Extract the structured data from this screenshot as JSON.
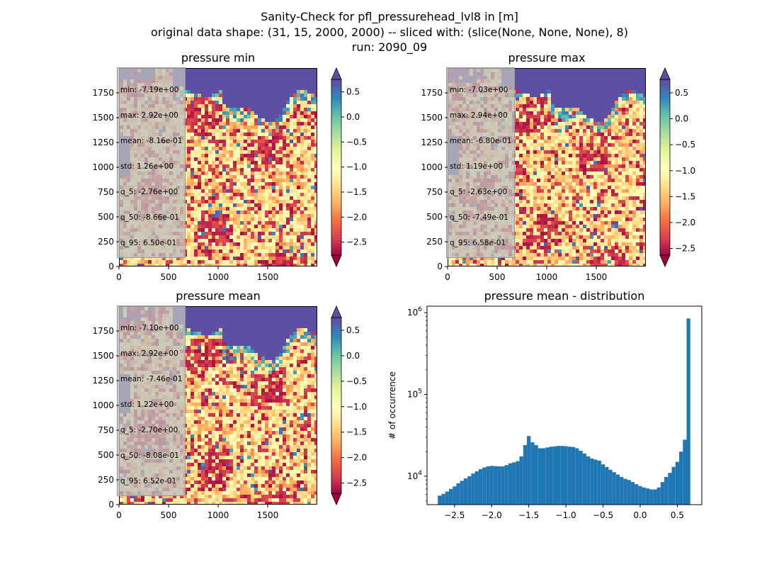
{
  "figure": {
    "suptitle_lines": [
      "Sanity-Check for pfl_pressurehead_lvl8 in [m]",
      "original data shape: (31, 15, 2000, 2000) -- sliced with: (slice(None, None, None), 8)",
      "run: 2090_09"
    ]
  },
  "panels": {
    "min": {
      "title": "pressure min",
      "stats": [
        "min: -7.19e+00",
        "max: 2.92e+00",
        "mean: -8.16e-01",
        "std: 1.26e+00",
        "q_5: -2.76e+00",
        "q_50: -8.66e-01",
        "q_95: 6.50e-01"
      ]
    },
    "max": {
      "title": "pressure max",
      "stats": [
        "min: -7.03e+00",
        "max: 2.94e+00",
        "mean: -6.80e-01",
        "std: 1.19e+00",
        "q_5: -2.63e+00",
        "q_50: -7.49e-01",
        "q_95: 6.58e-01"
      ]
    },
    "mean": {
      "title": "pressure mean",
      "stats": [
        "min: -7.10e+00",
        "max: 2.92e+00",
        "mean: -7.46e-01",
        "std: 1.22e+00",
        "q_5: -2.70e+00",
        "q_50: -8.08e-01",
        "q_95: 6.52e-01"
      ]
    },
    "hist": {
      "title": "pressure mean - distribution",
      "ylabel": "# of occurrence"
    }
  },
  "chart_data": [
    {
      "type": "heatmap",
      "title": "pressure min",
      "x_ticks": [
        "0",
        "500",
        "1000",
        "1500"
      ],
      "y_ticks": [
        "0",
        "250",
        "500",
        "750",
        "1000",
        "1250",
        "1500",
        "1750"
      ],
      "xlim": [
        0,
        2000
      ],
      "ylim": [
        0,
        2000
      ],
      "colorbar": {
        "range": [
          -2.76,
          0.75
        ],
        "ticks": [
          "0.5",
          "0.0",
          "−0.5",
          "−1.0",
          "−1.5",
          "−2.0",
          "−2.5"
        ],
        "tick_values": [
          0.5,
          0.0,
          -0.5,
          -1.0,
          -1.5,
          -2.0,
          -2.5
        ],
        "extend": "both",
        "colormap": "Spectral"
      }
    },
    {
      "type": "heatmap",
      "title": "pressure max",
      "x_ticks": [
        "0",
        "500",
        "1000",
        "1500"
      ],
      "y_ticks": [
        "0",
        "250",
        "500",
        "750",
        "1000",
        "1250",
        "1500",
        "1750"
      ],
      "xlim": [
        0,
        2000
      ],
      "ylim": [
        0,
        2000
      ],
      "colorbar": {
        "range": [
          -2.63,
          0.76
        ],
        "ticks": [
          "0.5",
          "0.0",
          "−0.5",
          "−1.0",
          "−1.5",
          "−2.0",
          "−2.5"
        ],
        "tick_values": [
          0.5,
          0.0,
          -0.5,
          -1.0,
          -1.5,
          -2.0,
          -2.5
        ],
        "extend": "both",
        "colormap": "Spectral"
      }
    },
    {
      "type": "heatmap",
      "title": "pressure mean",
      "x_ticks": [
        "0",
        "500",
        "1000",
        "1500"
      ],
      "y_ticks": [
        "0",
        "250",
        "500",
        "750",
        "1000",
        "1250",
        "1500",
        "1750"
      ],
      "xlim": [
        0,
        2000
      ],
      "ylim": [
        0,
        2000
      ],
      "colorbar": {
        "range": [
          -2.7,
          0.75
        ],
        "ticks": [
          "0.5",
          "0.0",
          "−0.5",
          "−1.0",
          "−1.5",
          "−2.0",
          "−2.5"
        ],
        "tick_values": [
          0.5,
          0.0,
          -0.5,
          -1.0,
          -1.5,
          -2.0,
          -2.5
        ],
        "extend": "both",
        "colormap": "Spectral"
      }
    },
    {
      "type": "bar",
      "title": "pressure mean - distribution",
      "ylabel": "# of occurrence",
      "xlabel": "",
      "yscale": "log",
      "xlim": [
        -2.87,
        0.83
      ],
      "ylim": [
        4500,
        1200000
      ],
      "x_ticks": [
        "−2.5",
        "−2.0",
        "−1.5",
        "−1.0",
        "−0.5",
        "0.0",
        "0.5"
      ],
      "x_tick_values": [
        -2.5,
        -2.0,
        -1.5,
        -1.0,
        -0.5,
        0.0,
        0.5
      ],
      "y_ticks": [
        "10^4",
        "10^5",
        "10^6"
      ],
      "color": "#1f77b4",
      "series": [
        {
          "x": [
            -2.7,
            -2.65,
            -2.6,
            -2.55,
            -2.5,
            -2.45,
            -2.4,
            -2.35,
            -2.3,
            -2.25,
            -2.2,
            -2.15,
            -2.1,
            -2.05,
            -2.0,
            -1.95,
            -1.9,
            -1.85,
            -1.8,
            -1.75,
            -1.7,
            -1.65,
            -1.6,
            -1.55,
            -1.5,
            -1.45,
            -1.4,
            -1.35,
            -1.3,
            -1.25,
            -1.2,
            -1.15,
            -1.1,
            -1.05,
            -1.0,
            -0.95,
            -0.9,
            -0.85,
            -0.8,
            -0.75,
            -0.7,
            -0.65,
            -0.6,
            -0.55,
            -0.5,
            -0.45,
            -0.4,
            -0.35,
            -0.3,
            -0.25,
            -0.2,
            -0.15,
            -0.1,
            -0.05,
            0.0,
            0.05,
            0.1,
            0.15,
            0.2,
            0.25,
            0.3,
            0.35,
            0.4,
            0.45,
            0.5,
            0.55,
            0.6,
            0.65
          ],
          "values": [
            5800,
            6100,
            6500,
            7000,
            7500,
            8200,
            8800,
            9400,
            10000,
            10800,
            11500,
            12200,
            12800,
            13200,
            13400,
            13300,
            13200,
            13200,
            13700,
            14400,
            14800,
            15300,
            17500,
            24000,
            31000,
            26000,
            24000,
            22000,
            22000,
            22500,
            23000,
            23200,
            23500,
            23500,
            23300,
            23000,
            22800,
            22000,
            20500,
            19000,
            17500,
            16500,
            16000,
            15500,
            14000,
            13000,
            12000,
            11200,
            10500,
            9800,
            9300,
            9000,
            8500,
            8000,
            7600,
            7300,
            7100,
            6900,
            6900,
            7300,
            8500,
            9800,
            11000,
            13000,
            15000,
            20000,
            28000,
            850000
          ]
        }
      ]
    }
  ]
}
